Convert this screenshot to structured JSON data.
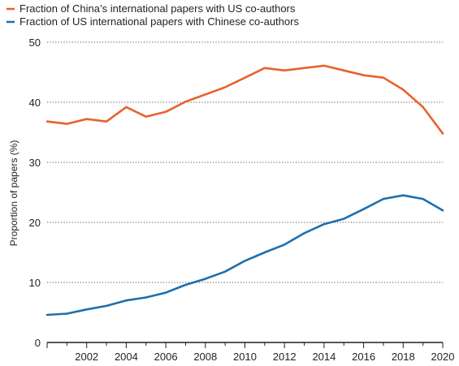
{
  "chart_data": {
    "type": "line",
    "title": "",
    "xlabel": "",
    "ylabel": "Proportion of papers (%)",
    "ylim": [
      0,
      50
    ],
    "xlim": [
      2000,
      2020
    ],
    "yticks": [
      "0",
      "10",
      "20",
      "30",
      "40",
      "50"
    ],
    "xticks": [
      "2002",
      "2004",
      "2006",
      "2008",
      "2010",
      "2012",
      "2014",
      "2016",
      "2018",
      "2020"
    ],
    "grid": "horizontal dotted",
    "legend_position": "top-left",
    "x": [
      2000,
      2001,
      2002,
      2003,
      2004,
      2005,
      2006,
      2007,
      2008,
      2009,
      2010,
      2011,
      2012,
      2013,
      2014,
      2015,
      2016,
      2017,
      2018,
      2019,
      2020
    ],
    "series": [
      {
        "name": "Fraction of China’s international papers with US co-authors",
        "color": "#e8622c",
        "values": [
          36.8,
          36.4,
          37.2,
          36.8,
          39.2,
          37.6,
          38.4,
          40.1,
          41.3,
          42.5,
          44.1,
          45.7,
          45.3,
          45.7,
          46.1,
          45.3,
          44.5,
          44.1,
          42.1,
          39.2,
          34.8
        ]
      },
      {
        "name": "Fraction of US international papers with Chinese co-authors",
        "color": "#1e6fad",
        "values": [
          4.6,
          4.8,
          5.5,
          6.1,
          7.0,
          7.5,
          8.3,
          9.6,
          10.6,
          11.8,
          13.6,
          15.0,
          16.3,
          18.2,
          19.7,
          20.6,
          22.2,
          23.9,
          24.5,
          23.9,
          22.0
        ]
      }
    ]
  }
}
